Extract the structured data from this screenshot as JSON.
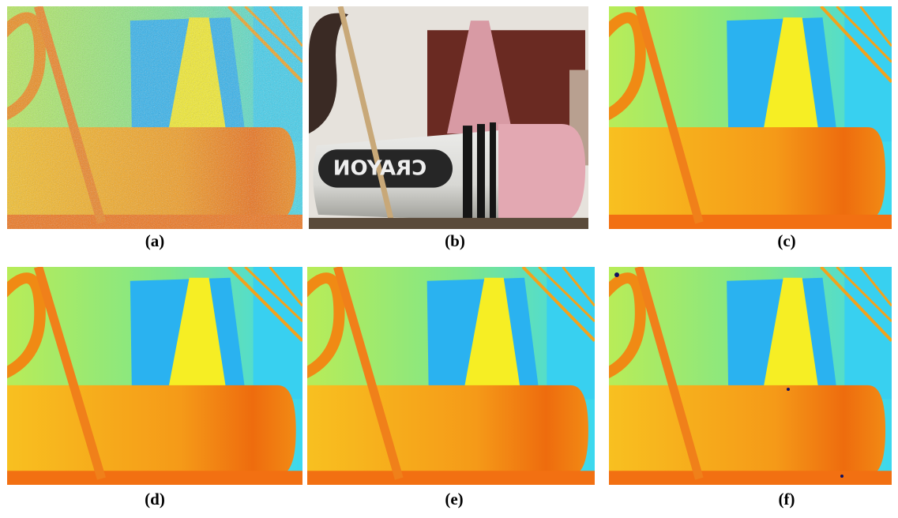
{
  "panels": [
    {
      "label": "(a)"
    },
    {
      "label": "(b)",
      "photo_text": "CRAYON"
    },
    {
      "label": "(c)"
    },
    {
      "label": "(d)"
    },
    {
      "label": "(e)"
    },
    {
      "label": "(f)"
    }
  ]
}
